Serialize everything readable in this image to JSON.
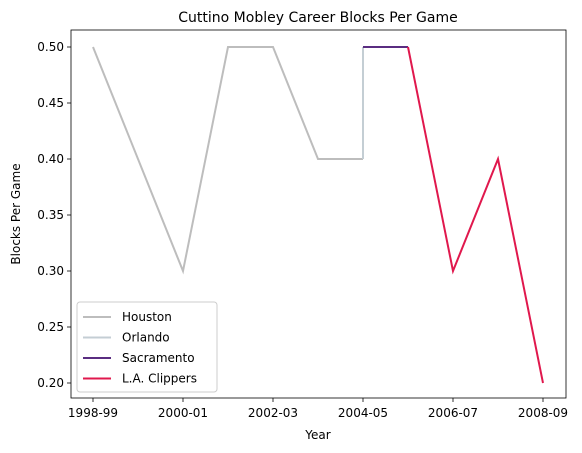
{
  "chart_data": {
    "type": "line",
    "title": "Cuttino Mobley Career Blocks Per Game",
    "xlabel": "Year",
    "ylabel": "Blocks Per Game",
    "x_tick_labels": [
      "1998-99",
      "2000-01",
      "2002-03",
      "2004-05",
      "2006-07",
      "2008-09"
    ],
    "y_ticks": [
      "0.20",
      "0.25",
      "0.30",
      "0.35",
      "0.40",
      "0.45",
      "0.50"
    ],
    "xlim": [
      0,
      10
    ],
    "ylim": [
      0.2,
      0.5
    ],
    "legend_position": "lower-left",
    "grid": false,
    "series": [
      {
        "name": "Houston",
        "color": "#bdbdbd",
        "points": [
          {
            "season": "1998-99",
            "value": 0.5
          },
          {
            "season": "1999-00",
            "value": 0.4
          },
          {
            "season": "2000-01",
            "value": 0.3
          },
          {
            "season": "2001-02",
            "value": 0.5
          },
          {
            "season": "2002-03",
            "value": 0.5
          },
          {
            "season": "2003-04",
            "value": 0.4
          },
          {
            "season": "2004-05",
            "value": 0.4
          }
        ]
      },
      {
        "name": "Orlando",
        "color": "#c4ced4",
        "points": [
          {
            "season": "2004-05",
            "value": 0.4
          },
          {
            "season": "2004-05",
            "value": 0.5
          }
        ]
      },
      {
        "name": "Sacramento",
        "color": "#5a2d81",
        "points": [
          {
            "season": "2004-05",
            "value": 0.5
          },
          {
            "season": "2005-06",
            "value": 0.5
          }
        ]
      },
      {
        "name": "L.A. Clippers",
        "color": "#e0184d",
        "points": [
          {
            "season": "2005-06",
            "value": 0.5
          },
          {
            "season": "2006-07",
            "value": 0.3
          },
          {
            "season": "2007-08",
            "value": 0.4
          },
          {
            "season": "2008-09",
            "value": 0.2
          }
        ]
      }
    ]
  }
}
